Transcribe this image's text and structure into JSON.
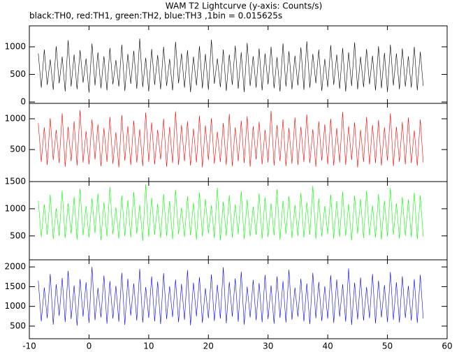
{
  "chart_data": [
    {
      "type": "line",
      "title": "WAM T2 Lightcurve (y-axis: Counts/s)",
      "subtitle": "black:TH0, red:TH1, green:TH2, blue:TH3 ,1bin = 0.015625s",
      "x": [
        -8.5,
        -8,
        -7.5,
        -7,
        -6.5,
        -6,
        -5.5,
        -5,
        -4.5,
        -4,
        -3.5,
        -3,
        -2.5,
        -2,
        -1.5,
        -1,
        -0.5,
        0,
        0.5,
        1,
        1.5,
        2,
        2.5,
        3,
        3.5,
        4,
        4.5,
        5,
        5.5,
        6,
        6.5,
        7,
        7.5,
        8,
        8.5,
        9,
        9.5,
        10,
        10.5,
        11,
        11.5,
        12,
        12.5,
        13,
        13.5,
        14,
        14.5,
        15,
        15.5,
        16,
        16.5,
        17,
        17.5,
        18,
        18.5,
        19,
        19.5,
        20,
        20.5,
        21,
        21.5,
        22,
        22.5,
        23,
        23.5,
        24,
        24.5,
        25,
        25.5,
        26,
        26.5,
        27,
        27.5,
        28,
        28.5,
        29,
        29.5,
        30,
        30.5,
        31,
        31.5,
        32,
        32.5,
        33,
        33.5,
        34,
        34.5,
        35,
        35.5,
        36,
        36.5,
        37,
        37.5,
        38,
        38.5,
        39,
        39.5,
        40,
        40.5,
        41,
        41.5,
        42,
        42.5,
        43,
        43.5,
        44,
        44.5,
        45,
        45.5,
        46,
        46.5,
        47,
        47.5,
        48,
        48.5,
        49,
        49.5,
        50,
        50.5,
        51,
        51.5,
        52,
        52.5,
        53,
        53.5,
        54,
        54.5,
        55,
        55.5,
        56
      ],
      "color": "#000000",
      "values": [
        880,
        260,
        950,
        310,
        770,
        220,
        1010,
        340,
        820,
        190,
        1120,
        280,
        860,
        230,
        940,
        350,
        790,
        170,
        1060,
        300,
        900,
        250,
        830,
        210,
        980,
        320,
        760,
        280,
        1040,
        200,
        870,
        330,
        930,
        240,
        1150,
        270,
        800,
        190,
        960,
        310,
        850,
        230,
        1000,
        290,
        780,
        210,
        1090,
        340,
        880,
        260,
        940,
        180,
        820,
        300,
        1010,
        250,
        870,
        220,
        1130,
        330,
        790,
        270,
        950,
        200,
        860,
        310,
        1020,
        240,
        900,
        180,
        1070,
        290,
        830,
        260,
        970,
        210,
        880,
        320,
        1000,
        250,
        810,
        190,
        1060,
        280,
        920,
        230,
        840,
        300,
        990,
        220,
        1100,
        260,
        870,
        340,
        950,
        200,
        780,
        270,
        1030,
        310,
        860,
        240,
        980,
        190,
        900,
        290,
        1080,
        230,
        820,
        270,
        960,
        320,
        840,
        210,
        1010,
        250,
        890,
        180,
        1040,
        300,
        880,
        230,
        970,
        280,
        830,
        260,
        1000,
        210,
        910,
        290
      ],
      "xlim": [
        -10,
        60
      ],
      "xticks": [
        -10,
        0,
        10,
        20,
        30,
        40,
        50,
        60
      ],
      "ylim": [
        -25,
        1380
      ],
      "yticks": [
        0,
        500,
        1000
      ]
    },
    {
      "type": "line",
      "x": [
        -8.5,
        -8,
        -7.5,
        -7,
        -6.5,
        -6,
        -5.5,
        -5,
        -4.5,
        -4,
        -3.5,
        -3,
        -2.5,
        -2,
        -1.5,
        -1,
        -0.5,
        0,
        0.5,
        1,
        1.5,
        2,
        2.5,
        3,
        3.5,
        4,
        4.5,
        5,
        5.5,
        6,
        6.5,
        7,
        7.5,
        8,
        8.5,
        9,
        9.5,
        10,
        10.5,
        11,
        11.5,
        12,
        12.5,
        13,
        13.5,
        14,
        14.5,
        15,
        15.5,
        16,
        16.5,
        17,
        17.5,
        18,
        18.5,
        19,
        19.5,
        20,
        20.5,
        21,
        21.5,
        22,
        22.5,
        23,
        23.5,
        24,
        24.5,
        25,
        25.5,
        26,
        26.5,
        27,
        27.5,
        28,
        28.5,
        29,
        29.5,
        30,
        30.5,
        31,
        31.5,
        32,
        32.5,
        33,
        33.5,
        34,
        34.5,
        35,
        35.5,
        36,
        36.5,
        37,
        37.5,
        38,
        38.5,
        39,
        39.5,
        40,
        40.5,
        41,
        41.5,
        42,
        42.5,
        43,
        43.5,
        44,
        44.5,
        45,
        45.5,
        46,
        46.5,
        47,
        47.5,
        48,
        48.5,
        49,
        49.5,
        50,
        50.5,
        51,
        51.5,
        52,
        52.5,
        53,
        53.5,
        54,
        54.5,
        55,
        55.5,
        56
      ],
      "color": "#ff0000",
      "values": [
        930,
        300,
        860,
        250,
        1010,
        330,
        820,
        280,
        1090,
        220,
        870,
        310,
        960,
        240,
        1140,
        290,
        800,
        260,
        990,
        340,
        910,
        230,
        850,
        300,
        1030,
        270,
        780,
        210,
        1060,
        320,
        880,
        250,
        970,
        290,
        830,
        230,
        1100,
        300,
        940,
        260,
        820,
        340,
        1000,
        220,
        870,
        280,
        1120,
        250,
        900,
        310,
        960,
        240,
        840,
        290,
        1050,
        210,
        890,
        330,
        1010,
        270,
        790,
        300,
        930,
        250,
        1080,
        230,
        860,
        310,
        970,
        280,
        1040,
        220,
        880,
        340,
        950,
        260,
        820,
        290,
        1130,
        240,
        900,
        310,
        990,
        230,
        850,
        270,
        1020,
        250,
        870,
        300,
        1070,
        280,
        830,
        220,
        960,
        320,
        910,
        260,
        1000,
        240,
        850,
        290,
        1110,
        250,
        880,
        330,
        940,
        210,
        820,
        300,
        1030,
        260,
        900,
        280,
        980,
        240,
        860,
        320,
        1090,
        230,
        870,
        300,
        950,
        260,
        1020,
        280,
        810,
        240,
        990,
        290
      ],
      "xlim": [
        -10,
        60
      ],
      "xticks": [
        -10,
        0,
        10,
        20,
        30,
        40,
        50,
        60
      ],
      "ylim": [
        -20,
        1250
      ],
      "yticks": [
        500,
        1000
      ]
    },
    {
      "type": "line",
      "x": [
        -8.5,
        -8,
        -7.5,
        -7,
        -6.5,
        -6,
        -5.5,
        -5,
        -4.5,
        -4,
        -3.5,
        -3,
        -2.5,
        -2,
        -1.5,
        -1,
        -0.5,
        0,
        0.5,
        1,
        1.5,
        2,
        2.5,
        3,
        3.5,
        4,
        4.5,
        5,
        5.5,
        6,
        6.5,
        7,
        7.5,
        8,
        8.5,
        9,
        9.5,
        10,
        10.5,
        11,
        11.5,
        12,
        12.5,
        13,
        13.5,
        14,
        14.5,
        15,
        15.5,
        16,
        16.5,
        17,
        17.5,
        18,
        18.5,
        19,
        19.5,
        20,
        20.5,
        21,
        21.5,
        22,
        22.5,
        23,
        23.5,
        24,
        24.5,
        25,
        25.5,
        26,
        26.5,
        27,
        27.5,
        28,
        28.5,
        29,
        29.5,
        30,
        30.5,
        31,
        31.5,
        32,
        32.5,
        33,
        33.5,
        34,
        34.5,
        35,
        35.5,
        36,
        36.5,
        37,
        37.5,
        38,
        38.5,
        39,
        39.5,
        40,
        40.5,
        41,
        41.5,
        42,
        42.5,
        43,
        43.5,
        44,
        44.5,
        45,
        45.5,
        46,
        46.5,
        47,
        47.5,
        48,
        48.5,
        49,
        49.5,
        50,
        50.5,
        51,
        51.5,
        52,
        52.5,
        53,
        53.5,
        54,
        54.5,
        55,
        55.5,
        56
      ],
      "color": "#00ff00",
      "values": [
        1150,
        480,
        1080,
        520,
        1260,
        440,
        1010,
        500,
        1330,
        460,
        1100,
        540,
        1220,
        430,
        1370,
        510,
        1050,
        470,
        1190,
        550,
        1280,
        420,
        1120,
        490,
        1400,
        530,
        1030,
        450,
        1240,
        500,
        1160,
        470,
        1310,
        540,
        1070,
        410,
        1450,
        480,
        1200,
        520,
        1090,
        460,
        1270,
        500,
        1140,
        440,
        1350,
        530,
        1020,
        480,
        1230,
        510,
        1110,
        430,
        1300,
        490,
        1180,
        550,
        1060,
        460,
        1390,
        420,
        1130,
        500,
        1250,
        470,
        1080,
        530,
        1320,
        440,
        1170,
        490,
        1040,
        520,
        1280,
        450,
        1210,
        480,
        1100,
        510,
        1360,
        430,
        1150,
        540,
        1230,
        460,
        1070,
        500,
        1290,
        470,
        1120,
        520,
        1420,
        440,
        1190,
        490,
        1050,
        530,
        1260,
        450,
        1140,
        480,
        1310,
        500,
        1090,
        420,
        1240,
        540,
        1180,
        460,
        1330,
        510,
        1060,
        470,
        1270,
        430,
        1150,
        490,
        1380,
        520,
        1100,
        450,
        1220,
        500,
        1170,
        480,
        1300,
        440,
        1250,
        490
      ],
      "xlim": [
        -10,
        60
      ],
      "xticks": [
        -10,
        0,
        10,
        20,
        30,
        40,
        50,
        60
      ],
      "ylim": [
        60,
        1500
      ],
      "yticks": [
        500,
        1000,
        1500
      ]
    },
    {
      "type": "line",
      "x": [
        -8.5,
        -8,
        -7.5,
        -7,
        -6.5,
        -6,
        -5.5,
        -5,
        -4.5,
        -4,
        -3.5,
        -3,
        -2.5,
        -2,
        -1.5,
        -1,
        -0.5,
        0,
        0.5,
        1,
        1.5,
        2,
        2.5,
        3,
        3.5,
        4,
        4.5,
        5,
        5.5,
        6,
        6.5,
        7,
        7.5,
        8,
        8.5,
        9,
        9.5,
        10,
        10.5,
        11,
        11.5,
        12,
        12.5,
        13,
        13.5,
        14,
        14.5,
        15,
        15.5,
        16,
        16.5,
        17,
        17.5,
        18,
        18.5,
        19,
        19.5,
        20,
        20.5,
        21,
        21.5,
        22,
        22.5,
        23,
        23.5,
        24,
        24.5,
        25,
        25.5,
        26,
        26.5,
        27,
        27.5,
        28,
        28.5,
        29,
        29.5,
        30,
        30.5,
        31,
        31.5,
        32,
        32.5,
        33,
        33.5,
        34,
        34.5,
        35,
        35.5,
        36,
        36.5,
        37,
        37.5,
        38,
        38.5,
        39,
        39.5,
        40,
        40.5,
        41,
        41.5,
        42,
        42.5,
        43,
        43.5,
        44,
        44.5,
        45,
        45.5,
        46,
        46.5,
        47,
        47.5,
        48,
        48.5,
        49,
        49.5,
        50,
        50.5,
        51,
        51.5,
        52,
        52.5,
        53,
        53.5,
        54,
        54.5,
        55,
        55.5,
        56
      ],
      "color": "#0000ff",
      "values": [
        1650,
        620,
        1480,
        700,
        1820,
        540,
        1560,
        760,
        1720,
        600,
        1900,
        680,
        1530,
        510,
        1690,
        740,
        1610,
        580,
        2000,
        650,
        1470,
        720,
        1780,
        560,
        1640,
        690,
        1520,
        610,
        1850,
        530,
        1700,
        770,
        1580,
        640,
        1950,
        590,
        1490,
        710,
        1760,
        620,
        1630,
        550,
        1840,
        680,
        1510,
        730,
        1680,
        600,
        1570,
        660,
        1920,
        520,
        1600,
        750,
        1740,
        580,
        1460,
        700,
        1810,
        630,
        1550,
        690,
        1990,
        570,
        1620,
        740,
        1710,
        610,
        1880,
        540,
        1500,
        720,
        1670,
        650,
        1590,
        600,
        1800,
        680,
        1530,
        560,
        1760,
        710,
        1640,
        590,
        1930,
        660,
        1480,
        740,
        1700,
        620,
        1580,
        550,
        1850,
        700,
        1620,
        630,
        1510,
        690,
        1790,
        580,
        1680,
        740,
        1560,
        610,
        1960,
        530,
        1600,
        670,
        1730,
        640,
        1490,
        700,
        1820,
        570,
        1650,
        720,
        1540,
        600,
        1870,
        660,
        1610,
        590,
        1760,
        710,
        1520,
        640,
        1690,
        580,
        1800,
        690
      ],
      "xlim": [
        -10,
        60
      ],
      "xticks": [
        -10,
        0,
        10,
        20,
        30,
        40,
        50,
        60
      ],
      "ylim": [
        180,
        2180
      ],
      "yticks": [
        500,
        1000,
        1500,
        2000
      ]
    }
  ]
}
